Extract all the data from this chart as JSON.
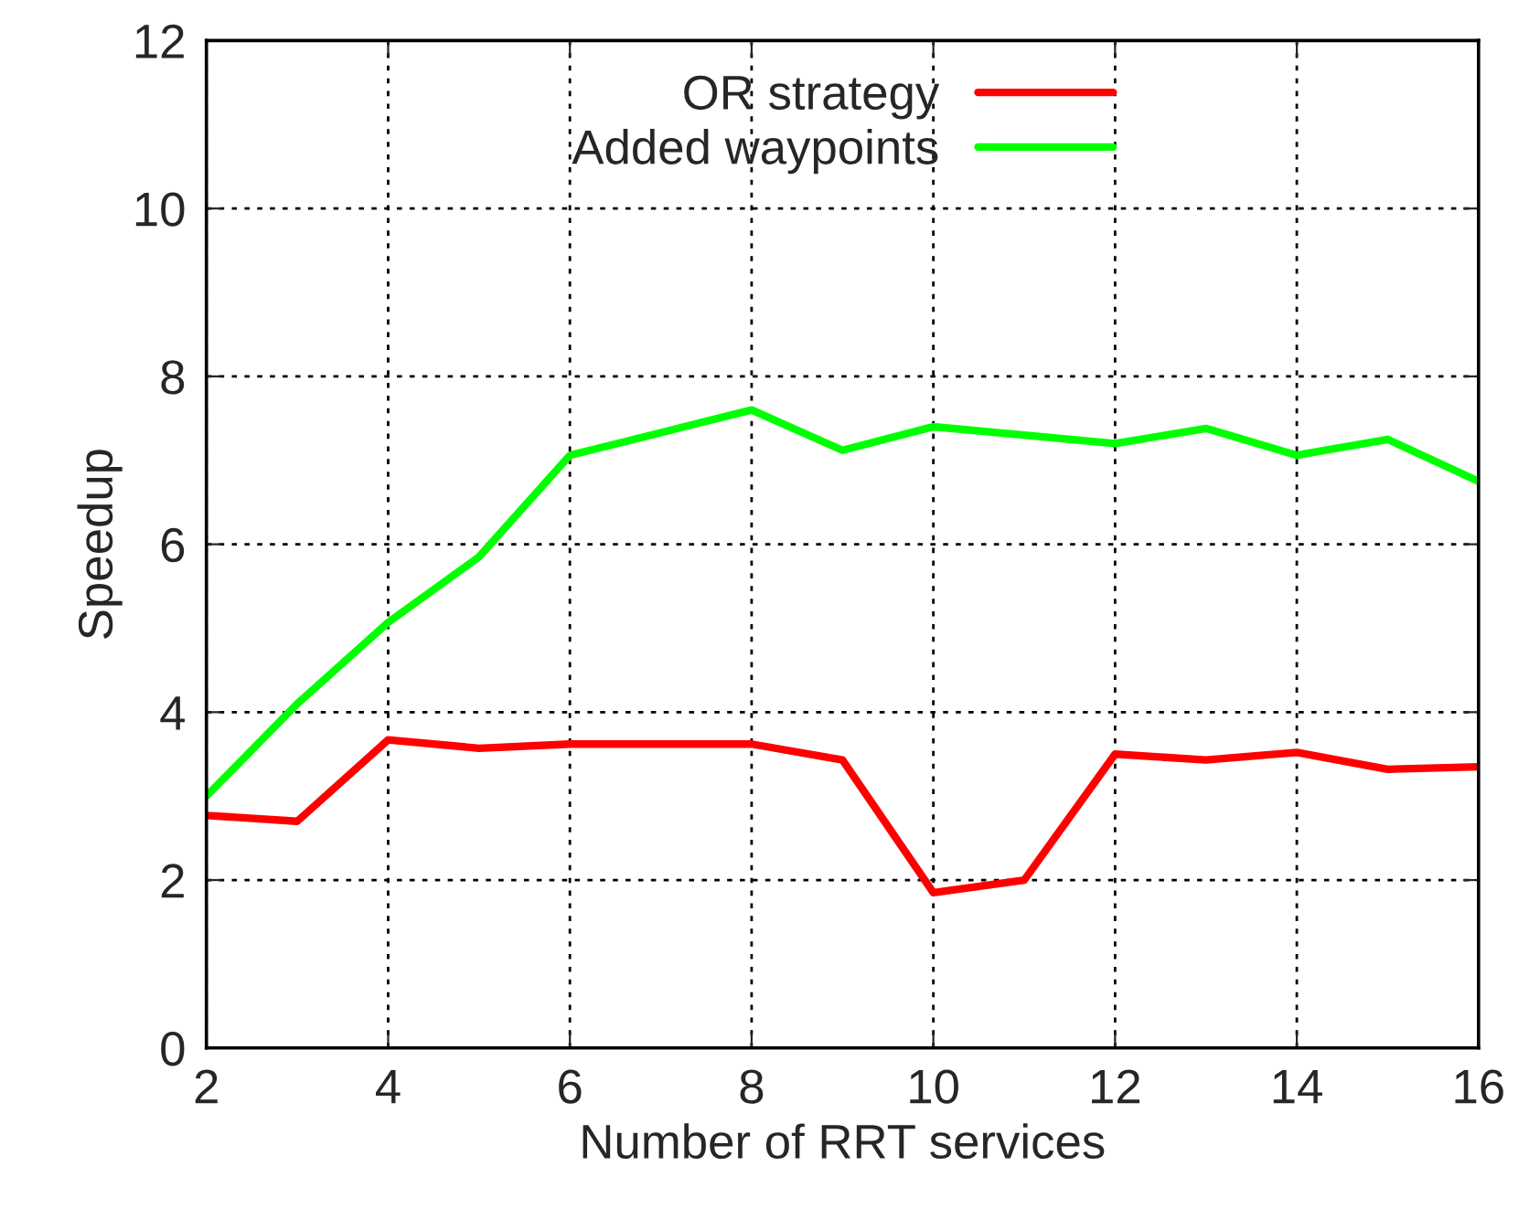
{
  "chart_data": {
    "type": "line",
    "xlabel": "Number of RRT services",
    "ylabel": "Speedup",
    "x": [
      2,
      3,
      4,
      5,
      6,
      7,
      8,
      9,
      10,
      11,
      12,
      13,
      14,
      15,
      16
    ],
    "series": [
      {
        "name": "OR strategy",
        "color": "#ff0000",
        "values": [
          2.77,
          2.7,
          3.67,
          3.57,
          3.62,
          3.62,
          3.62,
          3.43,
          1.85,
          2.0,
          3.5,
          3.43,
          3.52,
          3.32,
          3.35
        ]
      },
      {
        "name": "Added waypoints",
        "color": "#00ff00",
        "values": [
          3.0,
          4.1,
          5.07,
          5.85,
          7.06,
          7.33,
          7.6,
          7.12,
          7.4,
          7.3,
          7.2,
          7.38,
          7.06,
          7.25,
          6.75
        ]
      }
    ],
    "xlim": [
      2,
      16
    ],
    "xticks": [
      2,
      4,
      6,
      8,
      10,
      12,
      14,
      16
    ],
    "ylim": [
      0,
      12
    ],
    "yticks": [
      0,
      2,
      4,
      6,
      8,
      10,
      12
    ],
    "grid": true,
    "legend": "top",
    "marker": "none",
    "line_style": "solid"
  }
}
